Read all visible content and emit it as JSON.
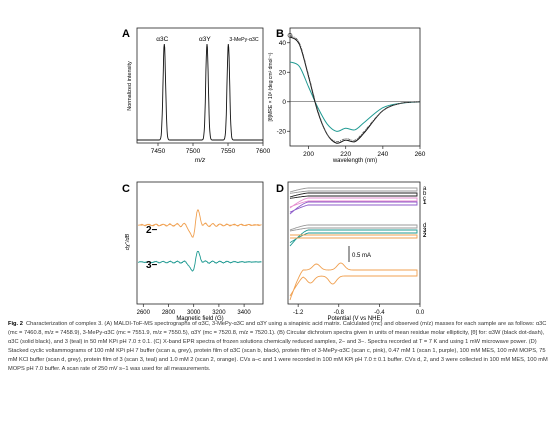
{
  "figure": {
    "caption_label": "Fig. 2",
    "caption_text": "Characterization of complex 3. (A) MALDI-ToF-MS spectrographs of α3C, 3-MePy-α3C and α3Y using a sinapinic acid matrix. Calculated (mc) and observed (m/z) masses for each sample are as follows: α3C (mc = 7460.8, m/z = 7458.9), 3-MePy-α3C (mc = 7551.9, m/z = 7550.5), α3Y (mc = 7520.8, m/z = 7520.1). (B) Circular dichroism spectra given in units of mean residue molar ellipticity, [θ] for: α3W (black dot-dash), α3C (solid black), and 3 (teal) in 50 mM KPi pH 7.0 ± 0.1. (C) X-band EPR spectra of frozen solutions chemically reduced samples, 2− and 3−. Spectra recorded at T = 7 K and using 1 mW microwave power. (D) Stacked cyclic voltammograms of 100 mM KPi pH 7 buffer (scan a, grey), protein film of α3C (scan b, black), protein film of 3-MePy-α3C (scan c, pink), 0.47 mM 1 (scan 1, purple), 100 mM MES, 100 mM MOPS, 75 mM KCl buffer (scan d, grey), protein film of 3 (scan 3, teal) and 1.0 mM 2 (scan 2, orange). CVs a–c and 1 were recorded in 100 mM KPi pH 7.0 ± 0.1 buffer. CVs d, 2, and 3 were collected in 100 mM MES, 100 mM MOPS pH 7.0 buffer. A scan rate of 250 mV s−1 was used for all measurements."
  },
  "chart_data": [
    {
      "panel": "A",
      "type": "line",
      "xlabel": "m/z",
      "ylabel": "Normalized intensity",
      "xlim": [
        7420,
        7600
      ],
      "xticks": [
        7450,
        7500,
        7550,
        7600
      ],
      "series": [
        {
          "name": "α3C",
          "peak_x": 7459,
          "peak_y": 1.0
        },
        {
          "name": "α3Y",
          "peak_x": 7520,
          "peak_y": 1.0
        },
        {
          "name": "3-MePy-α3C",
          "peak_x": 7550.5,
          "peak_y": 1.0
        }
      ]
    },
    {
      "panel": "B",
      "type": "line",
      "xlabel": "wavelength (nm)",
      "ylabel": "[θ]MRE × 10³ (deg cm² dmol⁻¹)",
      "xlim": [
        190,
        260
      ],
      "ylim": [
        -30,
        50
      ],
      "xticks": [
        200,
        220,
        240,
        260
      ],
      "yticks": [
        -20,
        0,
        20,
        40
      ],
      "series": [
        {
          "name": "α3W",
          "x": [
            190,
            195,
            200,
            205,
            210,
            215,
            220,
            225,
            230,
            240,
            250,
            260
          ],
          "y": [
            45,
            40,
            18,
            -6,
            -22,
            -27,
            -25,
            -26,
            -20,
            -6,
            -1,
            0
          ]
        },
        {
          "name": "α3C",
          "x": [
            190,
            195,
            200,
            205,
            210,
            215,
            220,
            225,
            230,
            240,
            250,
            260
          ],
          "y": [
            44,
            39,
            17,
            -7,
            -22,
            -28,
            -26,
            -27,
            -21,
            -6,
            -1,
            0
          ]
        },
        {
          "name": "3",
          "x": [
            190,
            195,
            200,
            205,
            210,
            215,
            220,
            225,
            230,
            240,
            250,
            260
          ],
          "y": [
            27,
            24,
            10,
            -4,
            -15,
            -20,
            -18,
            -19,
            -14,
            -4,
            -1,
            0
          ]
        }
      ]
    },
    {
      "panel": "C",
      "type": "line",
      "xlabel": "Magnetic field (G)",
      "ylabel": "dχ''/dB",
      "xlim": [
        2550,
        3550
      ],
      "xticks": [
        2600,
        2800,
        3000,
        3200,
        3400
      ],
      "series": [
        {
          "name": "2−"
        },
        {
          "name": "3−"
        }
      ]
    },
    {
      "panel": "D",
      "type": "line",
      "xlabel": "Potential (V vs NHE)",
      "xlim": [
        -1.3,
        0.0
      ],
      "xticks": [
        -1.2,
        -0.8,
        -0.4,
        0.0
      ],
      "scale_bar": "0.5 mA",
      "series": [
        {
          "name": "a"
        },
        {
          "name": "b"
        },
        {
          "name": "c"
        },
        {
          "name": "1"
        },
        {
          "name": "d"
        },
        {
          "name": "3"
        },
        {
          "name": "2"
        }
      ]
    }
  ]
}
